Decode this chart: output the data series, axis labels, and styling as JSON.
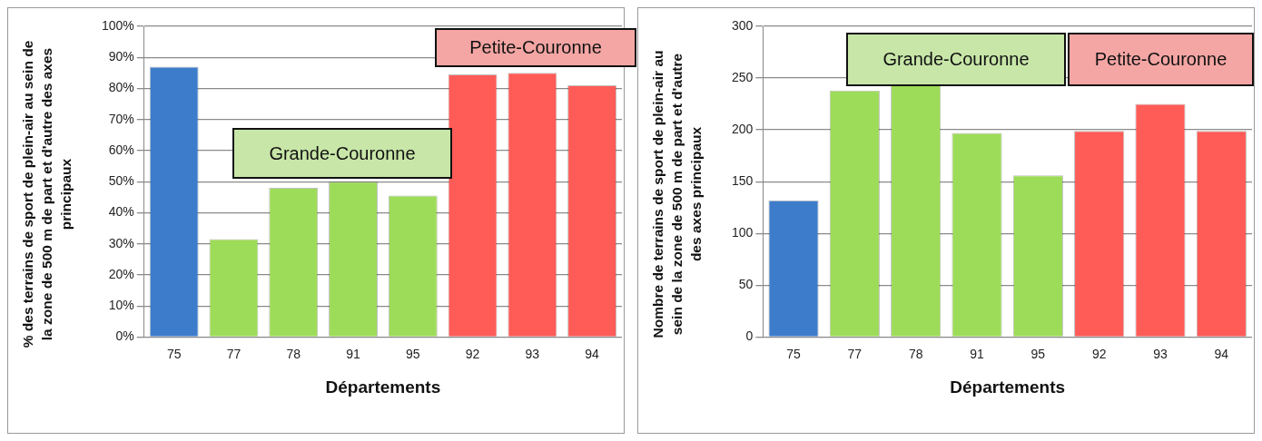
{
  "chart_data": [
    {
      "type": "bar",
      "xlabel": "Départements",
      "ylabel": "% des terrains de sport de plein-air au sein de la zone de 500 m de part et d'autre des axes principaux",
      "categories": [
        "75",
        "77",
        "78",
        "91",
        "95",
        "92",
        "93",
        "94"
      ],
      "values": [
        87,
        31.5,
        48,
        50,
        45.5,
        84.5,
        85,
        81
      ],
      "colors": [
        "#3d7ccb",
        "#9ddc58",
        "#9ddc58",
        "#9ddc58",
        "#9ddc58",
        "#ff5b57",
        "#ff5b57",
        "#ff5b57"
      ],
      "ylim": [
        0,
        100
      ],
      "yticks": [
        {
          "value": 0,
          "label": "0%"
        },
        {
          "value": 10,
          "label": "10%"
        },
        {
          "value": 20,
          "label": "20%"
        },
        {
          "value": 30,
          "label": "30%"
        },
        {
          "value": 40,
          "label": "40%"
        },
        {
          "value": 50,
          "label": "50%"
        },
        {
          "value": 60,
          "label": "60%"
        },
        {
          "value": 70,
          "label": "70%"
        },
        {
          "value": 80,
          "label": "80%"
        },
        {
          "value": 90,
          "label": "90%"
        },
        {
          "value": 100,
          "label": "100%"
        }
      ],
      "grid": "y",
      "legend": false,
      "annotations": [
        "Grande-Couronne",
        "Petite-Couronne"
      ]
    },
    {
      "type": "bar",
      "xlabel": "Départements",
      "ylabel": "Nombre de terrains de sport de plein-air au sein de la zone de 500 m de part et d'autre des axes principaux",
      "categories": [
        "75",
        "77",
        "78",
        "91",
        "95",
        "92",
        "93",
        "94"
      ],
      "values": [
        132,
        238,
        243,
        197,
        156,
        199,
        225,
        199
      ],
      "colors": [
        "#3d7ccb",
        "#9ddc58",
        "#9ddc58",
        "#9ddc58",
        "#9ddc58",
        "#ff5b57",
        "#ff5b57",
        "#ff5b57"
      ],
      "ylim": [
        0,
        300
      ],
      "yticks": [
        0,
        50,
        100,
        150,
        200,
        250,
        300
      ],
      "grid": "y",
      "legend": false,
      "annotations": [
        "Grande-Couronne",
        "Petite-Couronne"
      ]
    }
  ]
}
